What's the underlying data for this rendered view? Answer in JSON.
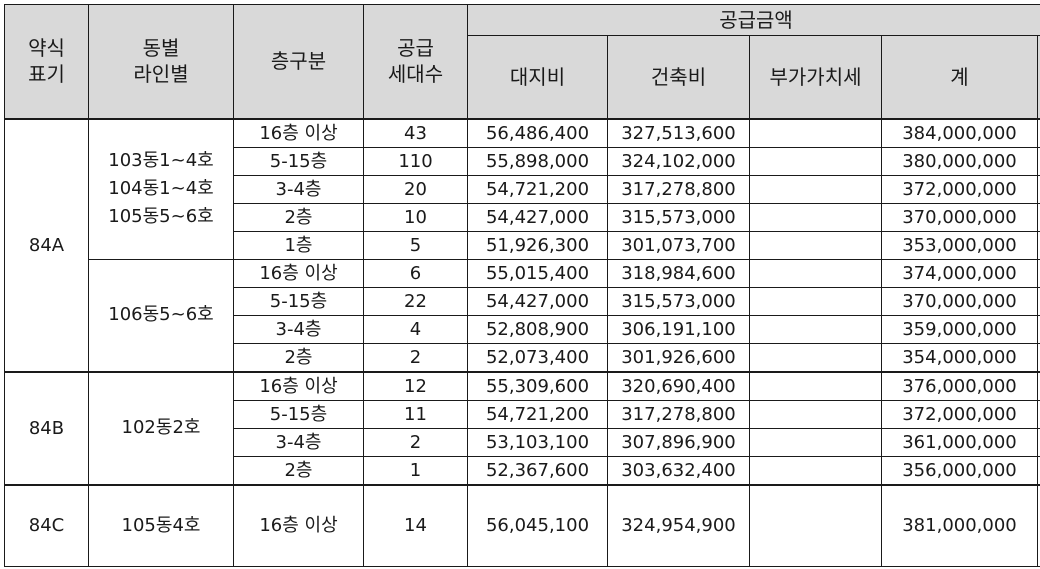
{
  "header": {
    "type": "약식\n표기",
    "line": "동별\n라인별",
    "floor": "층구분",
    "units": "공급\n세대수",
    "supply_price": "공급금액",
    "land": "대지비",
    "building": "건축비",
    "vat": "부가가치세",
    "total": "계"
  },
  "groups": [
    {
      "type": "84A",
      "subgroups": [
        {
          "line": [
            "103동1~4호",
            "104동1~4호",
            "105동5~6호"
          ],
          "rows": [
            {
              "floor": "16층 이상",
              "units": "43",
              "land": "56,486,400",
              "building": "327,513,600",
              "vat": "",
              "total": "384,000,000"
            },
            {
              "floor": "5-15층",
              "units": "110",
              "land": "55,898,000",
              "building": "324,102,000",
              "vat": "",
              "total": "380,000,000"
            },
            {
              "floor": "3-4층",
              "units": "20",
              "land": "54,721,200",
              "building": "317,278,800",
              "vat": "",
              "total": "372,000,000"
            },
            {
              "floor": "2층",
              "units": "10",
              "land": "54,427,000",
              "building": "315,573,000",
              "vat": "",
              "total": "370,000,000"
            },
            {
              "floor": "1층",
              "units": "5",
              "land": "51,926,300",
              "building": "301,073,700",
              "vat": "",
              "total": "353,000,000"
            }
          ]
        },
        {
          "line": [
            "106동5~6호"
          ],
          "rows": [
            {
              "floor": "16층 이상",
              "units": "6",
              "land": "55,015,400",
              "building": "318,984,600",
              "vat": "",
              "total": "374,000,000"
            },
            {
              "floor": "5-15층",
              "units": "22",
              "land": "54,427,000",
              "building": "315,573,000",
              "vat": "",
              "total": "370,000,000"
            },
            {
              "floor": "3-4층",
              "units": "4",
              "land": "52,808,900",
              "building": "306,191,100",
              "vat": "",
              "total": "359,000,000"
            },
            {
              "floor": "2층",
              "units": "2",
              "land": "52,073,400",
              "building": "301,926,600",
              "vat": "",
              "total": "354,000,000"
            }
          ]
        }
      ]
    },
    {
      "type": "84B",
      "subgroups": [
        {
          "line": [
            "102동2호"
          ],
          "rows": [
            {
              "floor": "16층 이상",
              "units": "12",
              "land": "55,309,600",
              "building": "320,690,400",
              "vat": "",
              "total": "376,000,000"
            },
            {
              "floor": "5-15층",
              "units": "11",
              "land": "54,721,200",
              "building": "317,278,800",
              "vat": "",
              "total": "372,000,000"
            },
            {
              "floor": "3-4층",
              "units": "2",
              "land": "53,103,100",
              "building": "307,896,900",
              "vat": "",
              "total": "361,000,000"
            },
            {
              "floor": "2층",
              "units": "1",
              "land": "52,367,600",
              "building": "303,632,400",
              "vat": "",
              "total": "356,000,000"
            }
          ]
        }
      ]
    },
    {
      "type": "84C",
      "subgroups": [
        {
          "line": [
            "105동4호"
          ],
          "rows": [
            {
              "floor": "16층 이상",
              "units": "14",
              "land": "56,045,100",
              "building": "324,954,900",
              "vat": "",
              "total": "381,000,000"
            }
          ]
        }
      ]
    }
  ]
}
